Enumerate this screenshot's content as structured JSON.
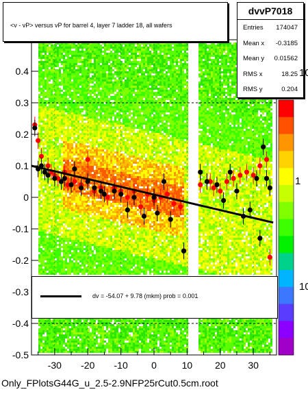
{
  "title": "<v - vP>       versus   vP for barrel 4, layer 7 ladder 18, all wafers",
  "stats": {
    "name": "dvvP7018",
    "rows": [
      {
        "key": "Entries",
        "val": "174047"
      },
      {
        "key": "Mean x",
        "val": "-0.3185"
      },
      {
        "key": "Mean y",
        "val": "0.01562"
      },
      {
        "key": "RMS x",
        "val": "18.25"
      },
      {
        "key": "RMS y",
        "val": "0.204"
      }
    ]
  },
  "legend": {
    "text": "dv =  -54.07 +   9.78 (mkm) prob = 0.001"
  },
  "footer": "Only_FPlotsG44G_u_2.5-2.9NFP25rCut0.5cm.root",
  "zaxis": {
    "labels": [
      "10",
      "1",
      "10"
    ]
  },
  "colors": {
    "fit": "#000000",
    "profile_red": "#ff0000",
    "profile_black": "#000000",
    "ref_line": "#000000"
  },
  "chart_data": {
    "type": "heatmap",
    "xlim": [
      -37,
      37
    ],
    "ylim": [
      -0.5,
      0.5
    ],
    "x_ticks": [
      -30,
      -20,
      -10,
      0,
      10,
      20,
      30
    ],
    "y_ticks": [
      -0.5,
      -0.4,
      -0.3,
      -0.2,
      -0.1,
      0,
      0.1,
      0.2,
      0.3,
      0.4
    ],
    "y_tick_labels": [
      "-0.5",
      "-0.4",
      "-0.3",
      "-0.2",
      "-0.1",
      "0",
      "0.1",
      "0.2",
      "0.3",
      "0.4"
    ],
    "dashed_ref_y": [
      0.3,
      -0.3,
      -0.4
    ],
    "gap": [
      10,
      13
    ],
    "fit": {
      "x": [
        -37,
        36
      ],
      "y": [
        0.1,
        -0.08
      ]
    },
    "profile_red": {
      "x": [
        -36,
        -35,
        -34,
        -32,
        -31,
        -30,
        -29,
        -28,
        -27,
        -26,
        -24,
        -22,
        -20,
        -18,
        -16,
        -14,
        -12,
        -10,
        -8,
        -6,
        -4,
        -2,
        0,
        2,
        4,
        6,
        8,
        9,
        14,
        16,
        17,
        18,
        20,
        22,
        24,
        26,
        28,
        30,
        32,
        34,
        35
      ],
      "y": [
        0.23,
        0.18,
        0.13,
        0.1,
        0.08,
        0.07,
        0.06,
        0.05,
        0.08,
        0.04,
        0.05,
        0.04,
        0.12,
        0.02,
        0.03,
        0.0,
        0.03,
        0.02,
        0.0,
        0.02,
        -0.03,
        0.01,
        -0.01,
        0.0,
        0.01,
        -0.02,
        -0.03,
        -0.17,
        0.04,
        0.05,
        0.05,
        0.03,
        0.02,
        0.05,
        0.06,
        0.07,
        0.08,
        0.07,
        0.1,
        0.12,
        -0.19
      ]
    },
    "profile_black": {
      "x": [
        -36,
        -35,
        -34,
        -33,
        -32,
        -30,
        -28,
        -27,
        -25,
        -24,
        -22,
        -20,
        -18,
        -16,
        -15,
        -12,
        -10,
        -8,
        -6,
        -3,
        0,
        1,
        3,
        5,
        9,
        14,
        16,
        19,
        21,
        23,
        25,
        27,
        29,
        31,
        32,
        33,
        34,
        35
      ],
      "y": [
        0.22,
        0.09,
        0.1,
        0.08,
        0.07,
        0.06,
        0.05,
        0.06,
        0.04,
        0.09,
        0.03,
        0.05,
        0.03,
        0.02,
        0.01,
        0.02,
        0.01,
        -0.04,
        0.0,
        -0.06,
        0.0,
        -0.05,
        0.05,
        -0.07,
        -0.17,
        0.08,
        0.05,
        0.04,
        -0.01,
        0.08,
        0.02,
        -0.06,
        -0.04,
        0.06,
        -0.13,
        0.16,
        0.06,
        0.03
      ]
    }
  }
}
